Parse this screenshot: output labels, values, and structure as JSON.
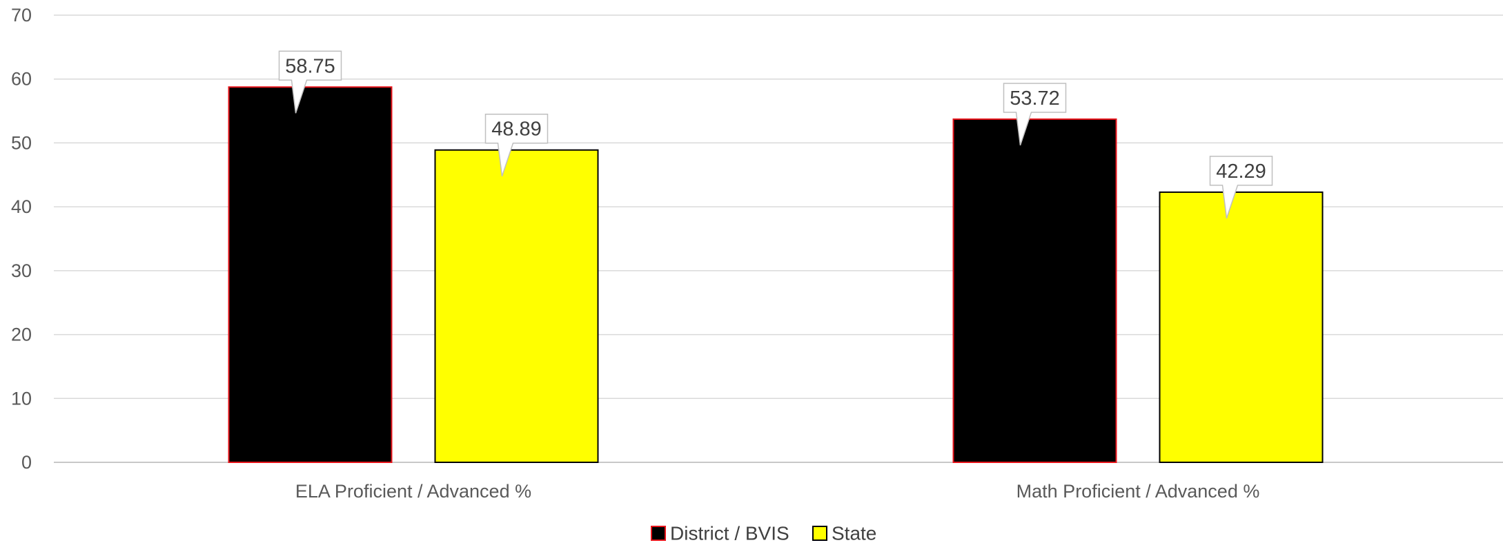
{
  "chart_data": {
    "type": "bar",
    "title": "",
    "xlabel": "",
    "ylabel": "",
    "categories": [
      "ELA Proficient / Advanced %",
      "Math Proficient / Advanced %"
    ],
    "series": [
      {
        "name": "District / BVIS",
        "values": [
          58.75,
          53.72
        ],
        "color": "#000000",
        "border_color": "#e8141b"
      },
      {
        "name": "State",
        "values": [
          48.89,
          42.29
        ],
        "color": "#ffff00",
        "border_color": "#000000"
      }
    ],
    "ylim": [
      0,
      70
    ],
    "yticks": [
      0,
      10,
      20,
      30,
      40,
      50,
      60,
      70
    ],
    "data_labels": true,
    "grid": "horizontal",
    "legend_position": "bottom"
  }
}
